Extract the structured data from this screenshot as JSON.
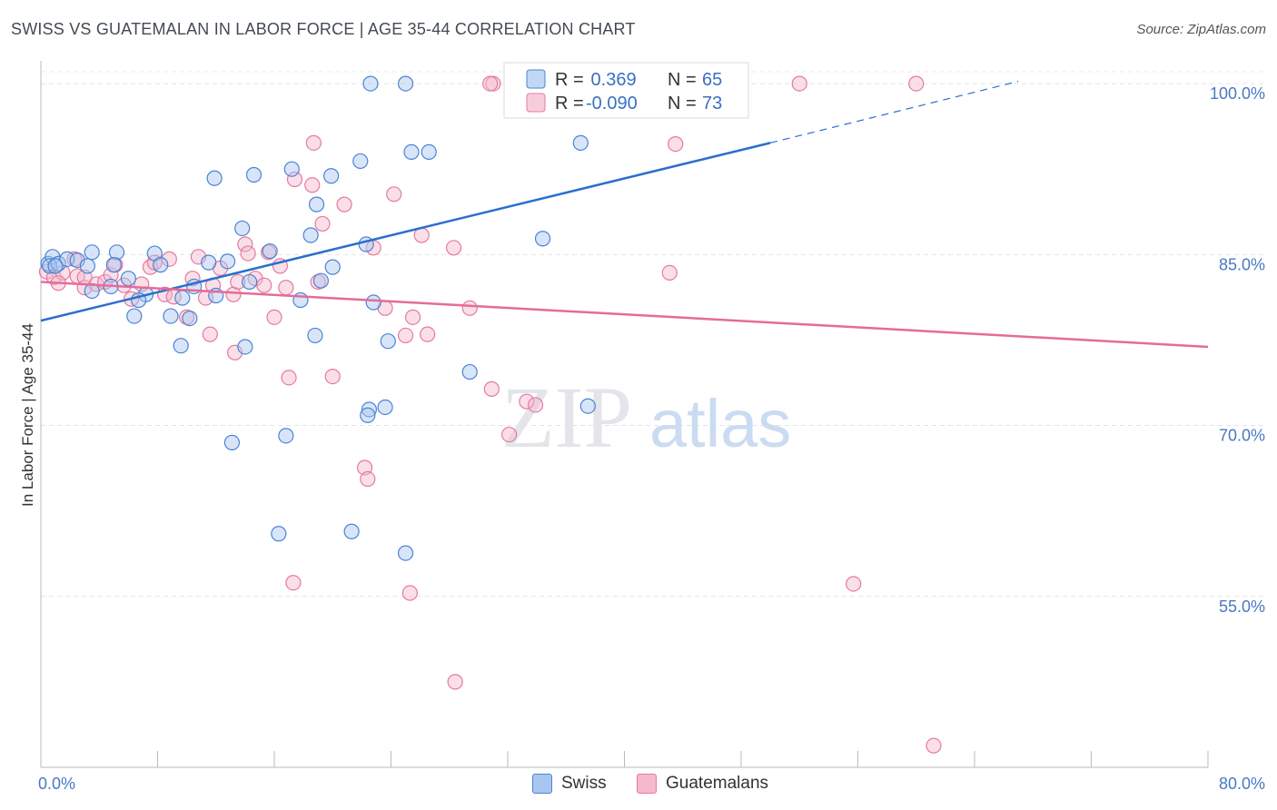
{
  "title": "SWISS VS GUATEMALAN IN LABOR FORCE | AGE 35-44 CORRELATION CHART",
  "source": "Source: ZipAtlas.com",
  "watermark": {
    "zip": "ZIP",
    "atlas": "atlas"
  },
  "colors": {
    "swiss_fill": "#a8c6ef",
    "swiss_stroke": "#4a84d4",
    "swiss_line": "#2a6fcf",
    "guat_fill": "#f5b8cc",
    "guat_stroke": "#e47aa0",
    "guat_line": "#e56b98",
    "tick_label": "#4a78c2"
  },
  "chart_data": {
    "type": "scatter",
    "xlabel": "",
    "ylabel": "In Labor Force | Age 35-44",
    "xlim": [
      0,
      80
    ],
    "ylim": [
      40,
      102
    ],
    "x_tick_labels": [
      "0.0%",
      "80.0%"
    ],
    "y_ticks": [
      55,
      70,
      85,
      100
    ],
    "y_tick_labels": [
      "55.0%",
      "70.0%",
      "85.0%",
      "100.0%"
    ],
    "grid": true,
    "legend": {
      "position": "top-center",
      "rows": [
        {
          "r_label": "R =",
          "r_value": " 0.369",
          "n_label": "N =",
          "n_value": "65"
        },
        {
          "r_label": "R =",
          "r_value": "-0.090",
          "n_label": "N =",
          "n_value": "73"
        }
      ]
    },
    "bottom_legend": [
      "Swiss",
      "Guatemalans"
    ],
    "series": [
      {
        "name": "Swiss",
        "trend": {
          "x0": 0,
          "y0": 79.2,
          "x1": 50,
          "y1": 94.8,
          "dash_x1": 67,
          "dash_y1": 100.2
        },
        "points": [
          [
            0.5,
            84.2
          ],
          [
            0.8,
            84.8
          ],
          [
            0.6,
            84.0
          ],
          [
            1.2,
            84.2
          ],
          [
            1.8,
            84.6
          ],
          [
            2.5,
            84.5
          ],
          [
            3.5,
            85.2
          ],
          [
            3.2,
            84.0
          ],
          [
            5.2,
            85.2
          ],
          [
            5.0,
            84.1
          ],
          [
            6.0,
            82.9
          ],
          [
            4.8,
            82.2
          ],
          [
            7.8,
            85.1
          ],
          [
            8.2,
            84.1
          ],
          [
            10.5,
            82.2
          ],
          [
            11.5,
            84.3
          ],
          [
            12.8,
            84.4
          ],
          [
            7.2,
            81.5
          ],
          [
            6.4,
            79.6
          ],
          [
            8.9,
            79.6
          ],
          [
            10.2,
            79.4
          ],
          [
            9.7,
            81.2
          ],
          [
            12.0,
            81.4
          ],
          [
            14.3,
            82.6
          ],
          [
            15.7,
            85.3
          ],
          [
            14.0,
            76.9
          ],
          [
            9.6,
            77.0
          ],
          [
            14.6,
            92.0
          ],
          [
            17.2,
            92.5
          ],
          [
            11.9,
            91.7
          ],
          [
            13.8,
            87.3
          ],
          [
            18.5,
            86.7
          ],
          [
            20.0,
            83.9
          ],
          [
            19.2,
            82.7
          ],
          [
            17.8,
            81.0
          ],
          [
            18.9,
            89.4
          ],
          [
            19.9,
            91.9
          ],
          [
            21.9,
            93.2
          ],
          [
            22.3,
            85.9
          ],
          [
            22.8,
            80.8
          ],
          [
            23.8,
            77.4
          ],
          [
            22.5,
            71.4
          ],
          [
            22.4,
            70.9
          ],
          [
            23.6,
            71.6
          ],
          [
            18.8,
            77.9
          ],
          [
            16.8,
            69.1
          ],
          [
            13.1,
            68.5
          ],
          [
            16.3,
            60.5
          ],
          [
            21.3,
            60.7
          ],
          [
            25.4,
            94.0
          ],
          [
            26.6,
            94.0
          ],
          [
            22.6,
            100.0
          ],
          [
            25.0,
            100.0
          ],
          [
            33.8,
            100.0
          ],
          [
            34.5,
            100.0
          ],
          [
            38.6,
            100.0
          ],
          [
            47.2,
            100.0
          ],
          [
            34.4,
            86.4
          ],
          [
            37.0,
            94.8
          ],
          [
            37.5,
            71.7
          ],
          [
            29.4,
            74.7
          ],
          [
            25.0,
            58.8
          ],
          [
            3.5,
            81.8
          ],
          [
            6.7,
            81.0
          ],
          [
            1.0,
            84.0
          ]
        ]
      },
      {
        "name": "Guatemalans",
        "trend": {
          "x0": 0,
          "y0": 82.6,
          "x1": 80,
          "y1": 76.9
        },
        "points": [
          [
            0.4,
            83.5
          ],
          [
            0.9,
            83.0
          ],
          [
            1.5,
            83.4
          ],
          [
            2.5,
            83.1
          ],
          [
            3.0,
            82.1
          ],
          [
            3.8,
            82.4
          ],
          [
            4.4,
            82.6
          ],
          [
            4.8,
            83.2
          ],
          [
            5.7,
            82.3
          ],
          [
            6.2,
            81.1
          ],
          [
            6.9,
            82.4
          ],
          [
            7.5,
            83.9
          ],
          [
            7.8,
            84.3
          ],
          [
            8.5,
            81.5
          ],
          [
            9.1,
            81.3
          ],
          [
            10.0,
            79.5
          ],
          [
            10.4,
            82.9
          ],
          [
            11.3,
            81.2
          ],
          [
            11.8,
            82.3
          ],
          [
            11.6,
            78.0
          ],
          [
            12.3,
            83.8
          ],
          [
            13.2,
            81.5
          ],
          [
            14.0,
            85.9
          ],
          [
            14.2,
            85.1
          ],
          [
            14.7,
            82.9
          ],
          [
            15.3,
            82.3
          ],
          [
            15.6,
            85.2
          ],
          [
            16.0,
            79.5
          ],
          [
            16.4,
            84.0
          ],
          [
            17.4,
            91.6
          ],
          [
            18.7,
            94.8
          ],
          [
            18.6,
            91.1
          ],
          [
            19.3,
            87.7
          ],
          [
            19.0,
            82.6
          ],
          [
            20.8,
            89.4
          ],
          [
            22.8,
            85.6
          ],
          [
            23.6,
            80.3
          ],
          [
            24.2,
            90.3
          ],
          [
            25.0,
            77.9
          ],
          [
            25.5,
            79.5
          ],
          [
            26.1,
            86.7
          ],
          [
            26.5,
            78.0
          ],
          [
            28.3,
            85.6
          ],
          [
            29.4,
            80.3
          ],
          [
            30.9,
            73.2
          ],
          [
            32.1,
            69.2
          ],
          [
            33.3,
            72.1
          ],
          [
            33.9,
            71.8
          ],
          [
            17.0,
            74.2
          ],
          [
            20.0,
            74.3
          ],
          [
            13.3,
            76.4
          ],
          [
            22.2,
            66.3
          ],
          [
            22.4,
            65.3
          ],
          [
            17.3,
            56.2
          ],
          [
            25.3,
            55.3
          ],
          [
            28.4,
            47.5
          ],
          [
            37.0,
            100.0
          ],
          [
            31.0,
            100.0
          ],
          [
            30.8,
            100.0
          ],
          [
            52.0,
            100.0
          ],
          [
            60.0,
            100.0
          ],
          [
            43.5,
            94.7
          ],
          [
            43.1,
            83.4
          ],
          [
            55.7,
            56.1
          ],
          [
            61.2,
            41.9
          ],
          [
            3.0,
            83.0
          ],
          [
            5.1,
            84.1
          ],
          [
            2.3,
            84.6
          ],
          [
            8.8,
            84.6
          ],
          [
            10.8,
            84.8
          ],
          [
            13.5,
            82.6
          ],
          [
            16.8,
            82.1
          ],
          [
            1.2,
            82.5
          ]
        ]
      }
    ]
  }
}
